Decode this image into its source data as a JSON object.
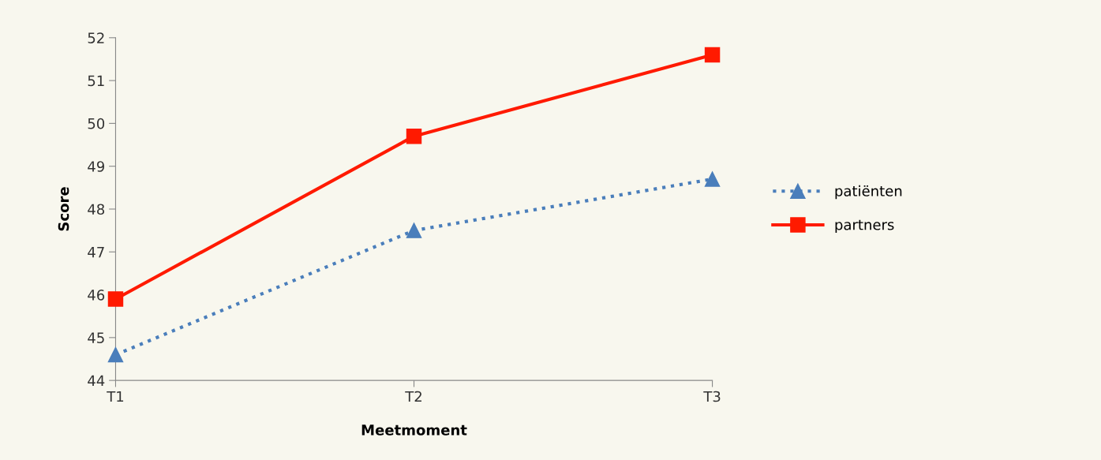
{
  "chart_data": {
    "type": "line",
    "xlabel": "Meetmoment",
    "ylabel": "Score",
    "categories": [
      "T1",
      "T2",
      "T3"
    ],
    "series": [
      {
        "name": "patiënten",
        "color": "#4a7ebb",
        "values": [
          44.6,
          47.5,
          48.7
        ],
        "marker": "triangle",
        "line_style": "dotted"
      },
      {
        "name": "partners",
        "color": "#ff1a00",
        "values": [
          45.9,
          49.7,
          51.6
        ],
        "marker": "square",
        "line_style": "solid"
      }
    ],
    "ylim": [
      44,
      52
    ],
    "yticks": [
      44,
      45,
      46,
      47,
      48,
      49,
      50,
      51,
      52
    ],
    "grid": false,
    "legend": "right"
  }
}
